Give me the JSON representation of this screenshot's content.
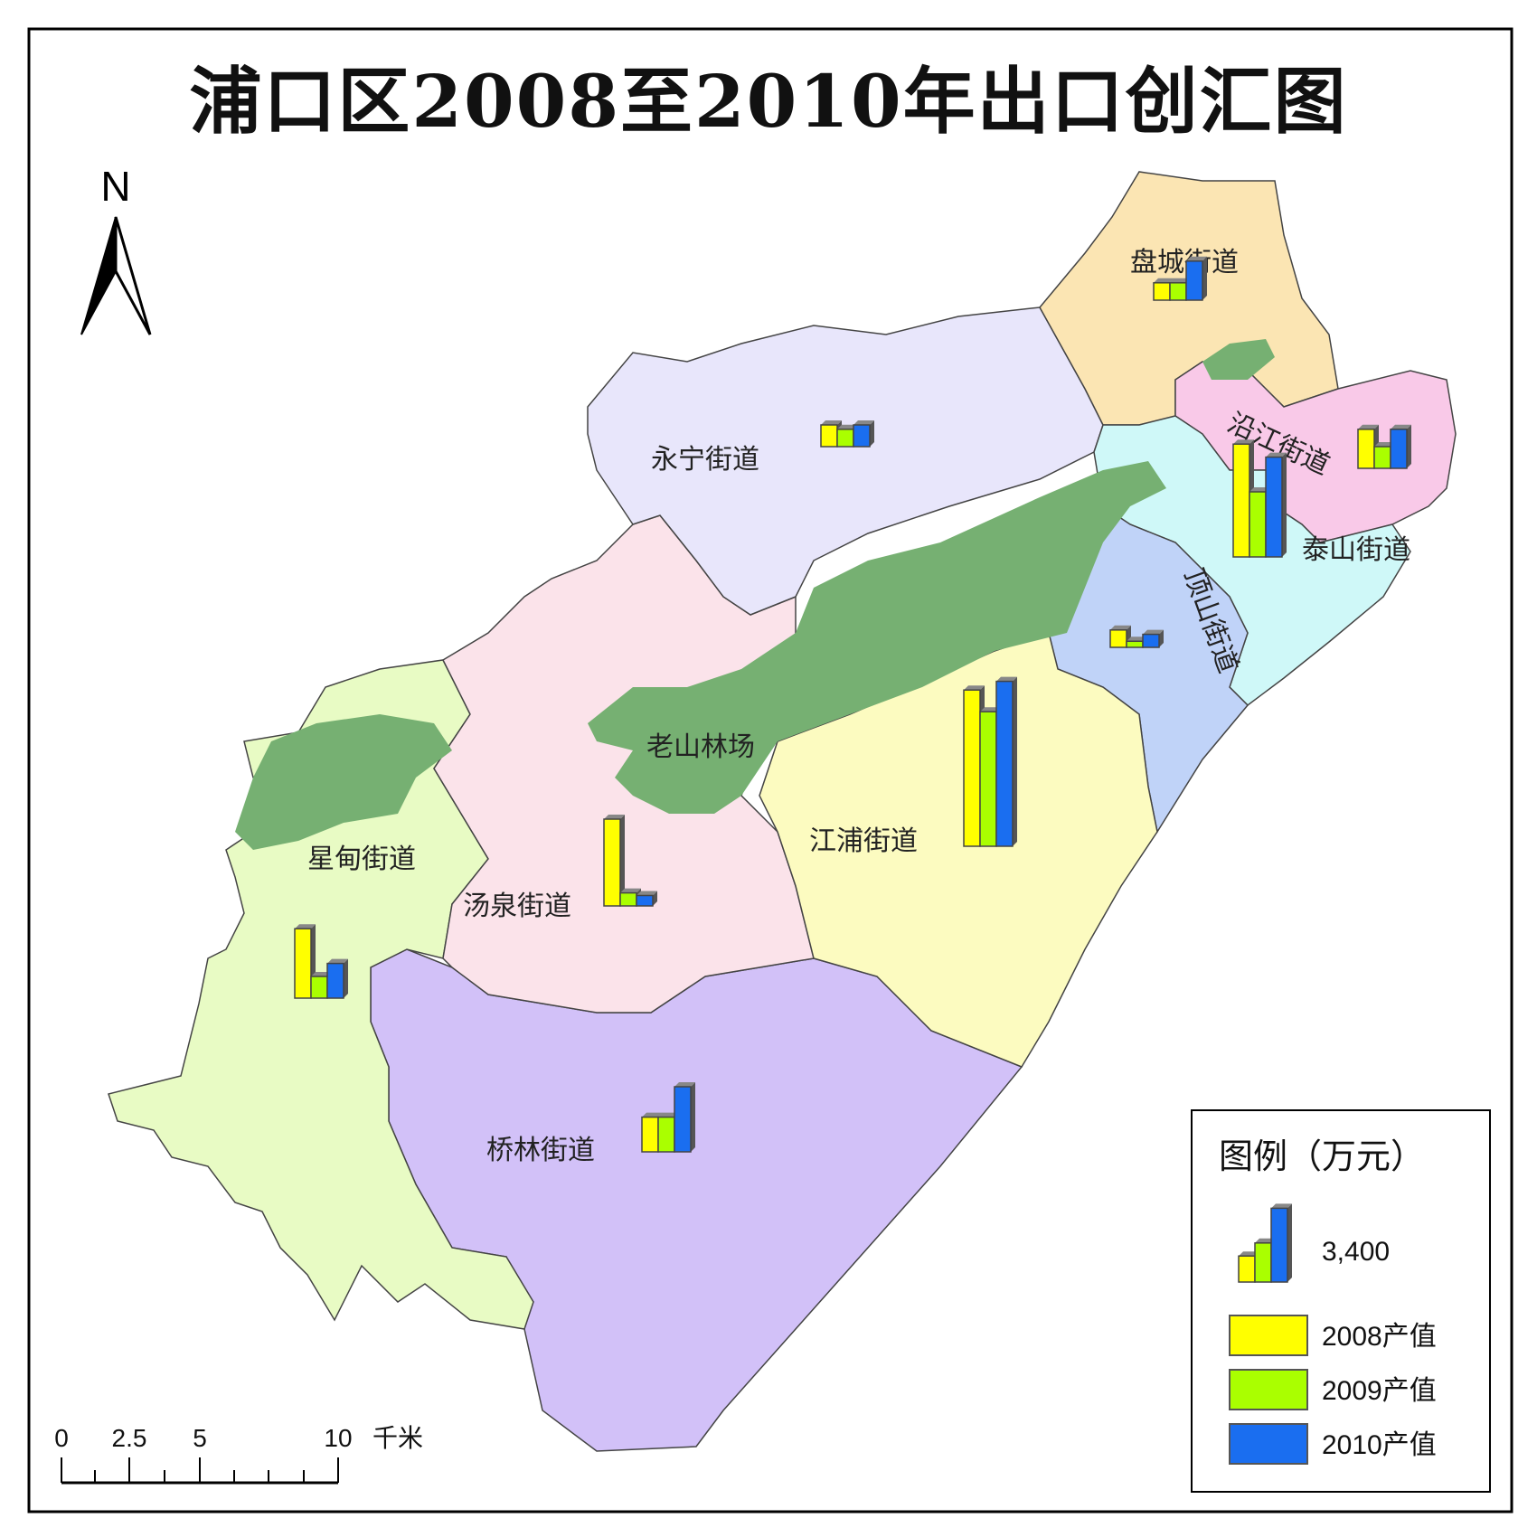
{
  "title": "浦口区2008至2010年出口创汇图",
  "north_arrow": {
    "label": "N",
    "icon": "north-arrow-icon"
  },
  "colors": {
    "panc": "#fbe5b3",
    "yanjiang": "#f9c9e8",
    "taishan": "#cff8f8",
    "dingshan": "#c0d3f8",
    "yongning": "#e8e6fb",
    "tangquan": "#fbe3ea",
    "jiangpu": "#fcfbc0",
    "xingdian": "#e8fbc4",
    "qiaolin": "#d2c1f8",
    "forest": "#76b072",
    "bar_2008": "#ffff00",
    "bar_2009": "#aaff00",
    "bar_2010": "#1a6ef0"
  },
  "districts": [
    {
      "id": "panc",
      "label": "盘城街道"
    },
    {
      "id": "yanjiang",
      "label": "沿江街道"
    },
    {
      "id": "taishan",
      "label": "泰山街道"
    },
    {
      "id": "dingshan",
      "label": "顶山街道"
    },
    {
      "id": "yongning",
      "label": "永宁街道"
    },
    {
      "id": "laoshan",
      "label": "老山林场"
    },
    {
      "id": "jiangpu",
      "label": "江浦街道"
    },
    {
      "id": "tangquan",
      "label": "汤泉街道"
    },
    {
      "id": "xingdian",
      "label": "星甸街道"
    },
    {
      "id": "qiaolin",
      "label": "桥林街道"
    }
  ],
  "bar_charts": [
    {
      "district": "盘城街道",
      "values": [
        0.2,
        0.2,
        0.45
      ]
    },
    {
      "district": "永宁街道",
      "values": [
        0.25,
        0.2,
        0.25
      ]
    },
    {
      "district": "沿江街道",
      "values": [
        0.45,
        0.25,
        0.45
      ]
    },
    {
      "district": "泰山街道",
      "values": [
        1.3,
        0.75,
        1.15
      ]
    },
    {
      "district": "顶山街道",
      "values": [
        0.2,
        0.07,
        0.15
      ]
    },
    {
      "district": "江浦街道",
      "values": [
        1.8,
        1.55,
        1.9
      ]
    },
    {
      "district": "汤泉街道",
      "values": [
        1.0,
        0.15,
        0.12
      ]
    },
    {
      "district": "星甸街道",
      "values": [
        0.8,
        0.25,
        0.4
      ]
    },
    {
      "district": "桥林街道",
      "values": [
        0.4,
        0.4,
        0.75
      ]
    }
  ],
  "legend": {
    "title": "图例（万元）",
    "size_value": "3,400",
    "series": [
      {
        "label": "2008产值",
        "color": "#ffff00"
      },
      {
        "label": "2009产值",
        "color": "#aaff00"
      },
      {
        "label": "2010产值",
        "color": "#1a6ef0"
      }
    ]
  },
  "scale_bar": {
    "labels": [
      "0",
      "2.5",
      "5",
      "10"
    ],
    "unit": "千米"
  }
}
